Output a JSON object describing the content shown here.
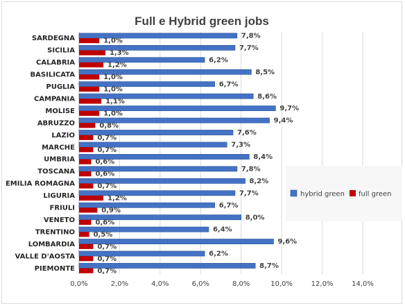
{
  "chart_data": {
    "type": "bar",
    "orientation": "horizontal",
    "title": "Full e Hybrid green jobs",
    "xlabel": "",
    "ylabel": "",
    "xlim": [
      0,
      0.14
    ],
    "x_ticks": [
      0,
      0.02,
      0.04,
      0.06,
      0.08,
      0.1,
      0.12,
      0.14
    ],
    "x_tick_labels": [
      "0,0%",
      "2,0%",
      "4,0%",
      "6,0%",
      "8,0%",
      "10,0%",
      "12,0%",
      "14,0%"
    ],
    "grid": true,
    "legend_position": "right",
    "categories": [
      "SARDEGNA",
      "SICILIA",
      "CALABRIA",
      "BASILICATA",
      "PUGLIA",
      "CAMPANIA",
      "MOLISE",
      "ABRUZZO",
      "LAZIO",
      "MARCHE",
      "UMBRIA",
      "TOSCANA",
      "EMILIA ROMAGNA",
      "LIGURIA",
      "FRIULI",
      "VENETO",
      "TRENTINO",
      "LOMBARDIA",
      "VALLE D'AOSTA",
      "PIEMONTE"
    ],
    "series": [
      {
        "name": "hybrid green",
        "color": "#4472c4",
        "values": [
          0.078,
          0.077,
          0.062,
          0.085,
          0.067,
          0.086,
          0.097,
          0.094,
          0.076,
          0.073,
          0.084,
          0.078,
          0.082,
          0.077,
          0.067,
          0.08,
          0.064,
          0.096,
          0.062,
          0.087
        ],
        "labels": [
          "7,8%",
          "7,7%",
          "6,2%",
          "8,5%",
          "6,7%",
          "8,6%",
          "9,7%",
          "9,4%",
          "7,6%",
          "7,3%",
          "8,4%",
          "7,8%",
          "8,2%",
          "7,7%",
          "6,7%",
          "8,0%",
          "6,4%",
          "9,6%",
          "6,2%",
          "8,7%"
        ]
      },
      {
        "name": "full green",
        "color": "#c00000",
        "values": [
          0.01,
          0.013,
          0.012,
          0.01,
          0.01,
          0.011,
          0.01,
          0.008,
          0.007,
          0.007,
          0.006,
          0.006,
          0.007,
          0.012,
          0.009,
          0.006,
          0.005,
          0.007,
          0.007,
          0.007
        ],
        "labels": [
          "1,0%",
          "1,3%",
          "1,2%",
          "1,0%",
          "1,0%",
          "1,1%",
          "1,0%",
          "0,8%",
          "0,7%",
          "0,7%",
          "0,6%",
          "0,6%",
          "0,7%",
          "1,2%",
          "0,9%",
          "0,6%",
          "0,5%",
          "0,7%",
          "0,7%",
          "0,7%"
        ]
      }
    ]
  }
}
